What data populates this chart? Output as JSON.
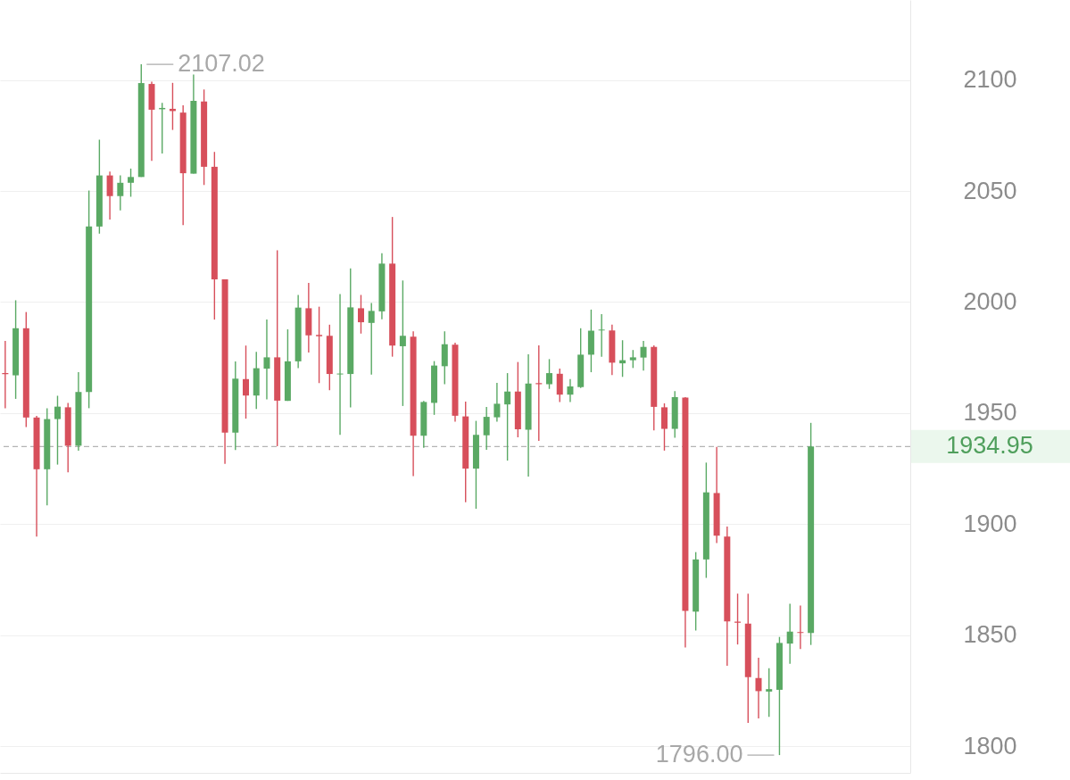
{
  "chart_data": {
    "type": "candlestick",
    "categories": [
      null,
      null,
      null,
      null,
      null,
      null,
      null,
      null,
      null,
      null,
      null,
      null,
      null,
      null,
      null,
      null,
      null,
      null,
      null,
      null,
      null,
      null,
      null,
      null,
      null,
      null,
      null,
      null,
      null,
      null,
      null,
      null,
      null,
      null,
      null,
      null,
      null,
      null,
      null,
      null,
      null,
      null,
      null,
      null,
      null,
      null,
      null,
      null,
      null,
      null,
      null,
      null,
      null,
      null,
      null,
      null,
      null,
      null,
      null,
      null,
      null,
      null,
      null,
      null,
      null,
      null,
      null,
      null,
      null,
      null,
      null,
      null,
      null,
      null,
      null,
      null,
      null,
      null,
      null,
      null,
      null,
      null,
      null,
      null,
      null,
      null,
      null
    ],
    "ohlc": [
      [
        1968,
        1982.5,
        1952.2,
        1967.5
      ],
      [
        1967,
        2000.8,
        1956.4,
        1988.2
      ],
      [
        1988.2,
        1995.5,
        1943.7,
        1948
      ],
      [
        1948,
        1948.7,
        1894.4,
        1924.7
      ],
      [
        1924.7,
        1952.2,
        1908.5,
        1947.3
      ],
      [
        1947.3,
        1957.8,
        1926.8,
        1952.9
      ],
      [
        1952.6,
        1954.6,
        1923.3,
        1935.3
      ],
      [
        1935.3,
        1968.4,
        1933.1,
        1959.5
      ],
      [
        1959.5,
        2050.2,
        1952.2,
        2034
      ],
      [
        2034,
        2073.1,
        2030.8,
        2057
      ],
      [
        2057,
        2058.7,
        2037.1,
        2047.7
      ],
      [
        2047.7,
        2057,
        2041.3,
        2053.7
      ],
      [
        2053.7,
        2060.1,
        2047.4,
        2056.3
      ],
      [
        2056.3,
        2107.02,
        2056.3,
        2098.6
      ],
      [
        2098.2,
        2099.2,
        2063.6,
        2086.6
      ],
      [
        2086.8,
        2089.7,
        2066.9,
        2087.4
      ],
      [
        2087,
        2098.7,
        2077.5,
        2086
      ],
      [
        2085.3,
        2088.6,
        2034.6,
        2058
      ],
      [
        2057.8,
        2102.4,
        2057.8,
        2090.6
      ],
      [
        2090.3,
        2095.7,
        2052.7,
        2060.9
      ],
      [
        2060.9,
        2067.6,
        1992.1,
        2010.2
      ],
      [
        2010.2,
        2010.2,
        1927.1,
        1941.2
      ],
      [
        1941.2,
        1973.3,
        1933.4,
        1965.5
      ],
      [
        1965.3,
        1980.4,
        1947.5,
        1957.9
      ],
      [
        1957.9,
        1977.6,
        1951.9,
        1970.2
      ],
      [
        1970,
        1992.1,
        1956.2,
        1975.1
      ],
      [
        1975.1,
        2023.3,
        1935.1,
        1955.6
      ],
      [
        1955.5,
        1987.7,
        1955.5,
        1973.3
      ],
      [
        1973.3,
        2003.2,
        1970.2,
        1997.5
      ],
      [
        1997.2,
        2008.6,
        1977.3,
        1985
      ],
      [
        1985.2,
        1997.9,
        1963.5,
        1984.6
      ],
      [
        1984.8,
        1989.8,
        1960.3,
        1967.6
      ],
      [
        1967.4,
        2003.6,
        1940.2,
        1967.8
      ],
      [
        1967.6,
        2015.1,
        1952.6,
        1997.6
      ],
      [
        1997.2,
        2003.2,
        1985.8,
        1990.9
      ],
      [
        1990.6,
        1999.6,
        1967.3,
        1996
      ],
      [
        1995.8,
        2022,
        1992.2,
        2017.3
      ],
      [
        2017.3,
        2038.3,
        1975.4,
        1980.4
      ],
      [
        1980.1,
        2009.7,
        1953.2,
        1984.8
      ],
      [
        1984.4,
        1986.8,
        1921.6,
        1939.8
      ],
      [
        1939.8,
        1955.5,
        1934.4,
        1955
      ],
      [
        1954.6,
        1973.4,
        1949.2,
        1971.4
      ],
      [
        1971.1,
        1986.8,
        1963,
        1981
      ],
      [
        1980.8,
        1981.7,
        1946.1,
        1948.8
      ],
      [
        1948.5,
        1955.2,
        1909.9,
        1925
      ],
      [
        1925,
        1946.5,
        1906.9,
        1940.2
      ],
      [
        1940,
        1952.8,
        1933.5,
        1948.3
      ],
      [
        1948.1,
        1963.6,
        1946.1,
        1954.2
      ],
      [
        1953.9,
        1968,
        1928.6,
        1959.7
      ],
      [
        1959.7,
        1973,
        1939.1,
        1942.7
      ],
      [
        1942.5,
        1976.5,
        1921.4,
        1963.3
      ],
      [
        1963.5,
        1980.5,
        1937.5,
        1963
      ],
      [
        1963,
        1974.3,
        1960.9,
        1968
      ],
      [
        1967.7,
        1970,
        1955,
        1958.3
      ],
      [
        1958.3,
        1965.3,
        1955,
        1962
      ],
      [
        1961.7,
        1988.2,
        1961.3,
        1976.3
      ],
      [
        1976.3,
        1996.6,
        1968.4,
        1987.1
      ],
      [
        1987.2,
        1994.5,
        1975.4,
        1987.6
      ],
      [
        1987.2,
        1989.8,
        1967.1,
        1972.7
      ],
      [
        1972.4,
        1982.8,
        1966.3,
        1973.8
      ],
      [
        1973.8,
        1978.4,
        1970.3,
        1975.1
      ],
      [
        1975,
        1982.5,
        1969.1,
        1979.8
      ],
      [
        1979.8,
        1980.5,
        1942.2,
        1952.8
      ],
      [
        1952.6,
        1954.4,
        1933.1,
        1942.9
      ],
      [
        1942.9,
        1959.9,
        1938.9,
        1957.2
      ],
      [
        1957,
        1957.2,
        1844.5,
        1860.9
      ],
      [
        1860.6,
        1887.4,
        1852.1,
        1884.1
      ],
      [
        1884.1,
        1927.7,
        1875.8,
        1914.3
      ],
      [
        1914,
        1934.8,
        1891.5,
        1894.8
      ],
      [
        1894.4,
        1898.9,
        1836.2,
        1856.2
      ],
      [
        1856.1,
        1868.7,
        1845.8,
        1855.6
      ],
      [
        1855.2,
        1868.7,
        1810.5,
        1831.1
      ],
      [
        1830.7,
        1839.8,
        1812.5,
        1824.8
      ],
      [
        1824.6,
        1835.1,
        1813.2,
        1825.7
      ],
      [
        1825.4,
        1849.2,
        1796,
        1846.5
      ],
      [
        1846.2,
        1864.2,
        1837.1,
        1851.6
      ],
      [
        1851.4,
        1863.3,
        1843.8,
        1851
      ],
      [
        1851,
        1945.6,
        1845.6,
        1934.95
      ],
      null,
      null,
      null,
      null,
      null,
      null,
      null,
      null,
      null
    ],
    "colors": [
      "#d74f5b",
      "#5aa964",
      "#d74f5b",
      "#d74f5b",
      "#5aa964",
      "#5aa964",
      "#d74f5b",
      "#5aa964",
      "#5aa964",
      "#5aa964",
      "#d74f5b",
      "#5aa964",
      "#5aa964",
      "#5aa964",
      "#d74f5b",
      "#5aa964",
      "#d74f5b",
      "#d74f5b",
      "#5aa964",
      "#d74f5b",
      "#d74f5b",
      "#d74f5b",
      "#5aa964",
      "#d74f5b",
      "#5aa964",
      "#5aa964",
      "#d74f5b",
      "#5aa964",
      "#5aa964",
      "#d74f5b",
      "#d74f5b",
      "#d74f5b",
      "#5aa964",
      "#5aa964",
      "#d74f5b",
      "#5aa964",
      "#5aa964",
      "#d74f5b",
      "#5aa964",
      "#d74f5b",
      "#5aa964",
      "#5aa964",
      "#5aa964",
      "#d74f5b",
      "#d74f5b",
      "#5aa964",
      "#5aa964",
      "#5aa964",
      "#5aa964",
      "#d74f5b",
      "#5aa964",
      "#d74f5b",
      "#5aa964",
      "#d74f5b",
      "#5aa964",
      "#5aa964",
      "#5aa964",
      "#5aa964",
      "#d74f5b",
      "#5aa964",
      "#5aa964",
      "#5aa964",
      "#d74f5b",
      "#d74f5b",
      "#5aa964",
      "#d74f5b",
      "#5aa964",
      "#5aa964",
      "#d74f5b",
      "#d74f5b",
      "#d74f5b",
      "#d74f5b",
      "#d74f5b",
      "#5aa964",
      "#5aa964",
      "#5aa964",
      "#d74f5b",
      "#5aa964",
      null,
      null,
      null,
      null,
      null,
      null,
      null,
      null,
      null
    ],
    "ylim": [
      1788,
      2136
    ],
    "yticks": [
      1800,
      1850,
      1900,
      1950,
      2000,
      2050,
      2100
    ],
    "grid": "y",
    "tick_labels": "y",
    "ref_lines": [
      {
        "axis": "y",
        "value": 1934.95,
        "label": "1934.95",
        "color": "#b4b4b4",
        "line_style": "dashed"
      }
    ],
    "annotations": [
      "2107.02",
      "1796.00"
    ]
  }
}
